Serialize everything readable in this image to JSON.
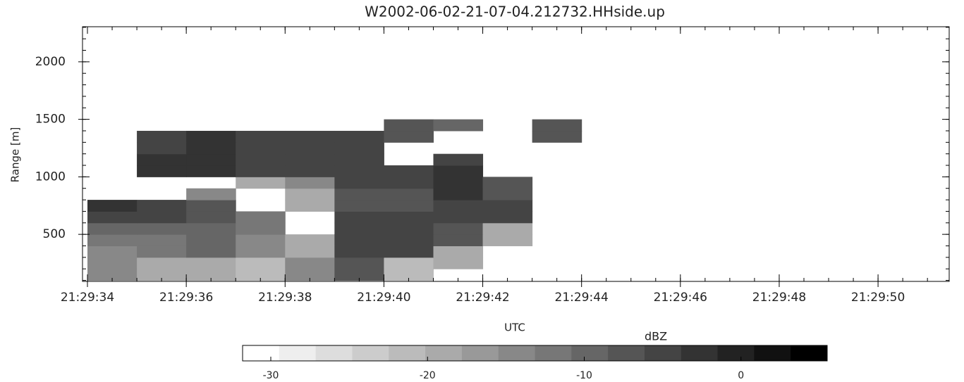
{
  "chart_data": {
    "type": "heatmap",
    "title": "W2002-06-02-21-07-04.212732.HHside.up",
    "xlabel": "UTC",
    "ylabel": "Range [m]",
    "colorbar_label": "dBZ",
    "colormap": "gray_r",
    "levels": 16,
    "xlim": [
      77373.9,
      77391.44
    ],
    "ylim": [
      91,
      2305
    ],
    "xticks": [
      {
        "value": 77374,
        "label": "21:29:34"
      },
      {
        "value": 77376,
        "label": "21:29:36"
      },
      {
        "value": 77378,
        "label": "21:29:38"
      },
      {
        "value": 77380,
        "label": "21:29:40"
      },
      {
        "value": 77382,
        "label": "21:29:42"
      },
      {
        "value": 77384,
        "label": "21:29:44"
      },
      {
        "value": 77386,
        "label": "21:29:46"
      },
      {
        "value": 77388,
        "label": "21:29:48"
      },
      {
        "value": 77390,
        "label": "21:29:50"
      }
    ],
    "yticks": [
      500,
      1000,
      1500,
      2000
    ],
    "clim": [
      -31.8,
      5.5
    ],
    "cticks": [
      -30,
      -20,
      -10,
      0
    ],
    "x_edges": [
      77374,
      77375,
      77376,
      77377,
      77378,
      77379,
      77380,
      77381,
      77382,
      77383,
      77384
    ],
    "y_edges": [
      100,
      200,
      300,
      400,
      500,
      600,
      700,
      800,
      900,
      1000,
      1100,
      1200,
      1300,
      1400,
      1500
    ],
    "z": [
      [
        -15,
        -18,
        -18,
        -22,
        -15,
        -8,
        -22,
        null,
        null,
        null
      ],
      [
        -15,
        -18,
        -18,
        -22,
        -15,
        -8,
        -22,
        -20,
        null,
        null
      ],
      [
        -14,
        -12,
        -10,
        -15,
        -20,
        -5,
        -6,
        -20,
        null,
        null
      ],
      [
        -13,
        -12,
        -10,
        -15,
        -20,
        -5,
        -6,
        -8,
        -18,
        null
      ],
      [
        -10,
        -10,
        -10,
        -12,
        null,
        -6,
        -4,
        -8,
        -18,
        null
      ],
      [
        -5,
        -6,
        -8,
        -12,
        null,
        -6,
        -4,
        -6,
        -5,
        null
      ],
      [
        -3,
        -5,
        -8,
        null,
        -20,
        -8,
        -8,
        -6,
        -5,
        null
      ],
      [
        null,
        null,
        -15,
        null,
        -20,
        -8,
        -8,
        -2,
        -8,
        null
      ],
      [
        null,
        null,
        null,
        -18,
        -15,
        -5,
        -6,
        -2,
        -8,
        null
      ],
      [
        null,
        -3,
        -3,
        -4,
        -5,
        -5,
        -6,
        -2,
        null,
        null
      ],
      [
        null,
        -3,
        -3,
        -4,
        -5,
        -6,
        null,
        -4,
        null,
        null
      ],
      [
        null,
        -5,
        -3,
        -4,
        -5,
        -6,
        null,
        null,
        null,
        null
      ],
      [
        null,
        -5,
        -3,
        -4,
        -5,
        -6,
        -8,
        null,
        null,
        -8
      ],
      [
        null,
        null,
        null,
        null,
        null,
        null,
        -8,
        -10,
        null,
        -8
      ]
    ]
  }
}
